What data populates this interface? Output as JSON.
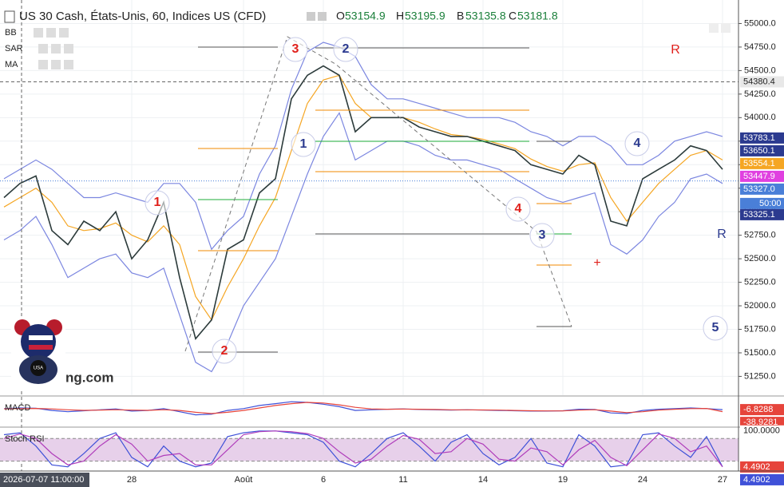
{
  "header": {
    "symbol": "US 30 Cash, États-Unis, 60, Indices US (CFD)",
    "ohlc": [
      {
        "label": "O",
        "value": 53154.9
      },
      {
        "label": "H",
        "value": 53195.9
      },
      {
        "label": "B",
        "value": 53135.8
      },
      {
        "label": "C",
        "value": 53181.8
      }
    ]
  },
  "indicators": [
    "BB",
    "SAR",
    "MA"
  ],
  "watermark": "ng.com",
  "chart_data": [
    {
      "type": "line",
      "categories": [
        null,
        null,
        null,
        null,
        null,
        null,
        null,
        null,
        "28",
        null,
        null,
        null,
        null,
        null,
        null,
        "Août",
        null,
        null,
        null,
        null,
        "6",
        null,
        null,
        null,
        null,
        "11",
        null,
        null,
        null,
        null,
        "14",
        null,
        null,
        null,
        null,
        "19",
        null,
        null,
        null,
        null,
        "24",
        null,
        null,
        null,
        null,
        "27"
      ],
      "series": [
        {
          "color": "#7b86e0",
          "values": [
            53350,
            53450,
            53550,
            53450,
            53300,
            53150,
            53150,
            53200,
            53150,
            53100,
            53300,
            53300,
            53100,
            52600,
            52800,
            52950,
            53400,
            53700,
            54300,
            54700,
            54800,
            54750,
            54650,
            54350,
            54200,
            54200,
            54150,
            54100,
            54050,
            54000,
            54000,
            54000,
            53950,
            53850,
            53800,
            53700,
            53800,
            53800,
            53700,
            53500,
            53500,
            53600,
            53750,
            53800,
            53850,
            53800
          ]
        },
        {
          "color": "#7b86e0",
          "values": [
            52700,
            52800,
            52950,
            52650,
            52300,
            52400,
            52500,
            52550,
            52350,
            52300,
            52400,
            51900,
            51400,
            51300,
            51600,
            52000,
            52250,
            52500,
            52950,
            53400,
            53800,
            54050,
            53550,
            53650,
            53750,
            53750,
            53700,
            53600,
            53550,
            53550,
            53500,
            53450,
            53350,
            53250,
            53150,
            53100,
            53150,
            53200,
            52650,
            52550,
            52700,
            52950,
            53100,
            53350,
            53400,
            53300
          ]
        },
        {
          "color": "#f5a623",
          "values": [
            53050,
            53150,
            53250,
            53100,
            52850,
            52800,
            52820,
            52880,
            52750,
            52680,
            52850,
            52650,
            52100,
            51850,
            52200,
            52500,
            52850,
            53150,
            53650,
            54150,
            54400,
            54450,
            54150,
            54000,
            54000,
            54000,
            53950,
            53880,
            53820,
            53800,
            53770,
            53720,
            53670,
            53560,
            53480,
            53430,
            53500,
            53520,
            53150,
            52900,
            53100,
            53300,
            53450,
            53600,
            53650,
            53550
          ]
        },
        {
          "color": "#2c3b3b",
          "values": [
            53150,
            53300,
            53380,
            52800,
            52650,
            52900,
            52800,
            53000,
            52500,
            52700,
            53100,
            52300,
            51650,
            51850,
            52600,
            52700,
            53200,
            53350,
            54200,
            54450,
            54550,
            54450,
            53850,
            54000,
            54000,
            54000,
            53900,
            53850,
            53800,
            53800,
            53750,
            53700,
            53650,
            53500,
            53450,
            53400,
            53600,
            53500,
            52900,
            52850,
            53350,
            53450,
            53550,
            53700,
            53650,
            53450
          ]
        }
      ],
      "ylim": [
        51050,
        55250
      ],
      "yticks": [
        {
          "value": 55000,
          "label": "55000.0"
        },
        {
          "value": 54750,
          "label": "54750.0"
        },
        {
          "value": 54500,
          "label": "54500.0"
        },
        {
          "value": 54250,
          "label": "54250.0"
        },
        {
          "value": 54000,
          "label": "54000.0"
        },
        {
          "value": 53750,
          "label": "53750.0"
        },
        {
          "value": 53500,
          "label": "53500.0"
        },
        {
          "value": 53250,
          "label": "53250.0"
        },
        {
          "value": 53000,
          "label": "53000.0"
        },
        {
          "value": 52750,
          "label": "52750.0"
        },
        {
          "value": 52500,
          "label": "52500.0"
        },
        {
          "value": 52250,
          "label": "52250.0"
        },
        {
          "value": 52000,
          "label": "52000.0"
        },
        {
          "value": 51750,
          "label": "51750.0"
        },
        {
          "value": 51500,
          "label": "51500.0"
        },
        {
          "value": 51250,
          "label": "51250.0"
        }
      ],
      "grid": true,
      "price_labels": [
        {
          "value": 54380.4,
          "label": "54380.4",
          "color": "#e8e8e8"
        },
        {
          "value": 53783.1,
          "label": "53783.1",
          "color": "#2b3a8f"
        },
        {
          "value": 53650.1,
          "label": "53650.1",
          "color": "#2b3a8f"
        },
        {
          "value": 53554.1,
          "label": "53554.1",
          "color": "#f5a623"
        },
        {
          "value": 53447.9,
          "label": "53447.9",
          "color": "#e040e0"
        },
        {
          "value": 53327,
          "label": "53327.0",
          "color": "#4a7fd8",
          "countdown": "50:00"
        },
        {
          "value": 53325.1,
          "label": "53325.1",
          "color": "#2b3a8f"
        }
      ],
      "crosshair_label": "2026-07-07 11:00:00",
      "annotations": [
        {
          "text": "1",
          "color": "#e0201b"
        },
        {
          "text": "2",
          "color": "#e0201b"
        },
        {
          "text": "3",
          "color": "#e0201b"
        },
        {
          "text": "4",
          "color": "#e0201b"
        },
        {
          "text": "R",
          "color": "#e0201b"
        },
        {
          "text": "+",
          "color": "#e0201b"
        },
        {
          "text": "2",
          "color": "#2b3a8f"
        },
        {
          "text": "1",
          "color": "#2b3a8f"
        },
        {
          "text": "3",
          "color": "#2b3a8f"
        },
        {
          "text": "4",
          "color": "#2b3a8f"
        },
        {
          "text": "5",
          "color": "#2b3a8f"
        },
        {
          "text": "R",
          "color": "#2b3a8f"
        }
      ]
    },
    {
      "type": "line",
      "title": "MACD",
      "series": [
        {
          "color": "#3f51d8",
          "values": [
            10,
            20,
            15,
            -20,
            -40,
            -25,
            -10,
            5,
            -30,
            -20,
            10,
            -40,
            -90,
            -80,
            -20,
            10,
            60,
            90,
            120,
            110,
            80,
            40,
            -20,
            -10,
            0,
            5,
            -5,
            -10,
            -15,
            -10,
            -15,
            -20,
            -25,
            -30,
            -30,
            -25,
            0,
            -5,
            -60,
            -70,
            -20,
            0,
            10,
            20,
            10,
            -7
          ]
        },
        {
          "color": "#e6443b",
          "values": [
            5,
            10,
            12,
            5,
            -10,
            -18,
            -15,
            -8,
            -15,
            -18,
            -8,
            -20,
            -50,
            -70,
            -50,
            -20,
            20,
            60,
            90,
            110,
            100,
            70,
            30,
            5,
            0,
            2,
            0,
            -5,
            -10,
            -10,
            -12,
            -15,
            -20,
            -25,
            -28,
            -27,
            -15,
            -8,
            -30,
            -55,
            -40,
            -15,
            0,
            10,
            12,
            -39
          ]
        }
      ],
      "ylim": [
        -250,
        200
      ],
      "price_labels": [
        {
          "value": -6.8288,
          "label": "-6.8288",
          "color": "#e6443b"
        },
        {
          "value": -38.9281,
          "label": "-38.9281",
          "color": "#e6443b"
        }
      ]
    },
    {
      "type": "line",
      "title": "Stoch RSI",
      "series": [
        {
          "color": "#3f51d8",
          "values": [
            90,
            95,
            60,
            10,
            5,
            40,
            80,
            95,
            30,
            5,
            60,
            20,
            5,
            15,
            85,
            95,
            100,
            100,
            95,
            90,
            70,
            20,
            5,
            40,
            80,
            95,
            60,
            20,
            70,
            90,
            40,
            10,
            30,
            80,
            15,
            5,
            90,
            60,
            5,
            10,
            90,
            95,
            60,
            30,
            85,
            5
          ]
        },
        {
          "color": "#b03dbb",
          "values": [
            80,
            92,
            80,
            40,
            10,
            20,
            60,
            90,
            65,
            20,
            35,
            40,
            10,
            10,
            50,
            90,
            98,
            100,
            98,
            93,
            80,
            45,
            15,
            25,
            60,
            88,
            78,
            40,
            45,
            80,
            65,
            25,
            20,
            55,
            45,
            10,
            50,
            75,
            30,
            8,
            50,
            92,
            80,
            45,
            60,
            5
          ]
        }
      ],
      "ylim": [
        -2,
        108
      ],
      "band": [
        20,
        80
      ],
      "price_labels": [
        {
          "value": 100,
          "label": "100.0000",
          "color": "#ffffff"
        },
        {
          "value": 4.4902,
          "label": "4.4902",
          "color": "#e6443b"
        },
        {
          "value": 4.4902,
          "label": "4.4902",
          "color": "#3f51d8"
        }
      ]
    }
  ]
}
